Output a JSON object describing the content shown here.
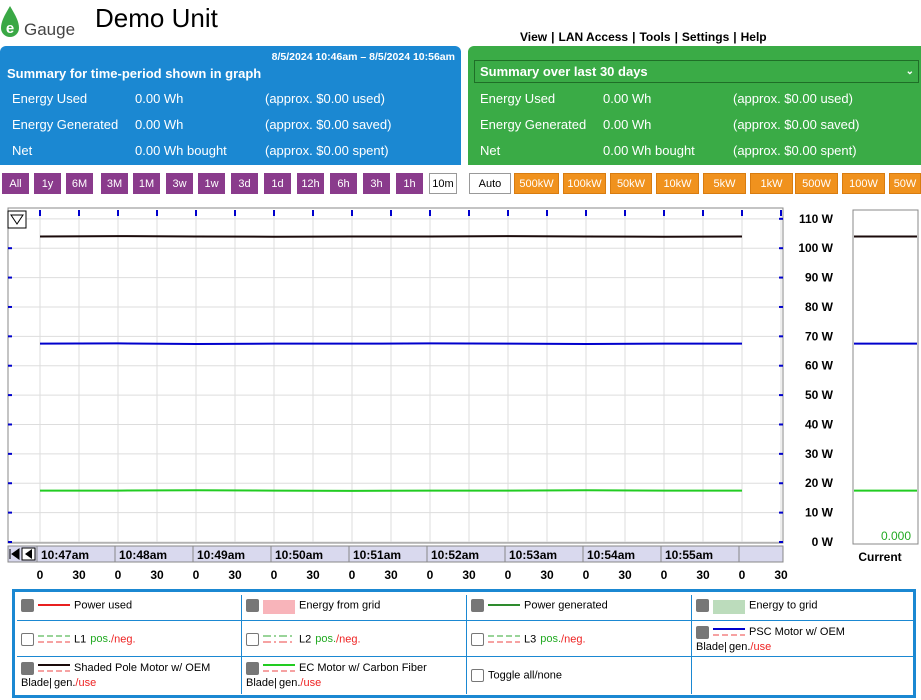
{
  "header": {
    "logo": "Gauge",
    "title": "Demo Unit",
    "nav": [
      "View",
      "LAN Access",
      "Tools",
      "Settings",
      "Help"
    ]
  },
  "summary_left": {
    "range": "8/5/2024 10:46am – 8/5/2024 10:56am",
    "title": "Summary for time-period shown in graph",
    "rows": [
      [
        "Energy Used",
        "0.00 Wh",
        "(approx. $0.00 used)"
      ],
      [
        "Energy Generated",
        "0.00 Wh",
        "(approx. $0.00 saved)"
      ],
      [
        "Net",
        "0.00 Wh bought",
        "(approx. $0.00 spent)"
      ]
    ]
  },
  "summary_right": {
    "title": "Summary over last 30 days",
    "rows": [
      [
        "Energy Used",
        "0.00 Wh",
        "(approx. $0.00 used)"
      ],
      [
        "Energy Generated",
        "0.00 Wh",
        "(approx. $0.00 saved)"
      ],
      [
        "Net",
        "0.00 Wh bought",
        "(approx. $0.00 spent)"
      ]
    ]
  },
  "time_buttons": {
    "labels": [
      "All",
      "1y",
      "6M",
      "3M",
      "1M",
      "3w",
      "1w",
      "3d",
      "1d",
      "12h",
      "6h",
      "3h",
      "1h",
      "10m"
    ],
    "selected": "10m"
  },
  "scale_buttons": {
    "labels": [
      "Auto",
      "500kW",
      "100kW",
      "50kW",
      "10kW",
      "5kW",
      "1kW",
      "500W",
      "100W",
      "50W"
    ],
    "selected": "Auto"
  },
  "chart_data": {
    "type": "line",
    "categories": [
      "10:47am",
      "10:48am",
      "10:49am",
      "10:50am",
      "10:51am",
      "10:52am",
      "10:53am",
      "10:54am",
      "10:55am",
      null
    ],
    "second_labels": [
      "0",
      "30",
      "0",
      "30",
      "0",
      "30",
      "0",
      "30",
      "0",
      "30",
      "0",
      "30",
      "0",
      "30",
      "0",
      "30",
      "0",
      "30",
      "0",
      "30"
    ],
    "series": [
      {
        "name": "PSC Motor w/ OEM Blade|",
        "color": "#0000cc",
        "checked": true,
        "values": [
          67.5,
          67.6,
          67.4,
          67.5,
          67.5,
          67.6,
          67.5,
          67.4,
          67.5,
          67.5
        ]
      },
      {
        "name": "Shaded Pole Motor w/ OEM Blade|",
        "color": "#1a0a0a",
        "checked": true,
        "values": [
          104,
          104.1,
          104,
          103.9,
          104,
          104,
          104.1,
          104,
          103.9,
          104
        ]
      },
      {
        "name": "EC Motor w/ Carbon Fiber Blade|",
        "color": "#22cc22",
        "checked": true,
        "values": [
          17.5,
          17.5,
          17.6,
          17.5,
          17.4,
          17.5,
          17.5,
          17.6,
          17.5,
          17.5
        ]
      }
    ],
    "ylim": [
      0,
      113
    ],
    "yticks": [
      {
        "value": 0,
        "label": "0 W"
      },
      {
        "value": 10,
        "label": "10 W"
      },
      {
        "value": 20,
        "label": "20 W"
      },
      {
        "value": 30,
        "label": "30 W"
      },
      {
        "value": 40,
        "label": "40 W"
      },
      {
        "value": 50,
        "label": "50 W"
      },
      {
        "value": 60,
        "label": "60 W"
      },
      {
        "value": 70,
        "label": "70 W"
      },
      {
        "value": 80,
        "label": "80 W"
      },
      {
        "value": 90,
        "label": "90 W"
      },
      {
        "value": 100,
        "label": "100 W"
      },
      {
        "value": 110,
        "label": "110 W"
      }
    ],
    "grid": true,
    "current_value": "0.000",
    "current_label": "Current"
  },
  "legend": {
    "items": [
      {
        "label": "Power used",
        "color": "#e82020",
        "style": "line",
        "checked": true
      },
      {
        "label": "Energy from grid",
        "color": "#f8b4ba",
        "style": "box",
        "checked": true
      },
      {
        "label": "Power generated",
        "color": "#2e8b2e",
        "style": "line",
        "checked": true
      },
      {
        "label": "Energy to grid",
        "color": "#bcdcbc",
        "style": "box",
        "checked": true
      },
      {
        "label": "L1",
        "pos": "pos.",
        "neg": "/neg.",
        "checked": false
      },
      {
        "label": "L2",
        "pos": "pos.",
        "neg": "/neg.",
        "checked": false
      },
      {
        "label": "L3",
        "pos": "pos.",
        "neg": "/neg.",
        "checked": false
      }
    ],
    "gen": "gen.",
    "use": "/use",
    "toggle": "Toggle all/none"
  }
}
